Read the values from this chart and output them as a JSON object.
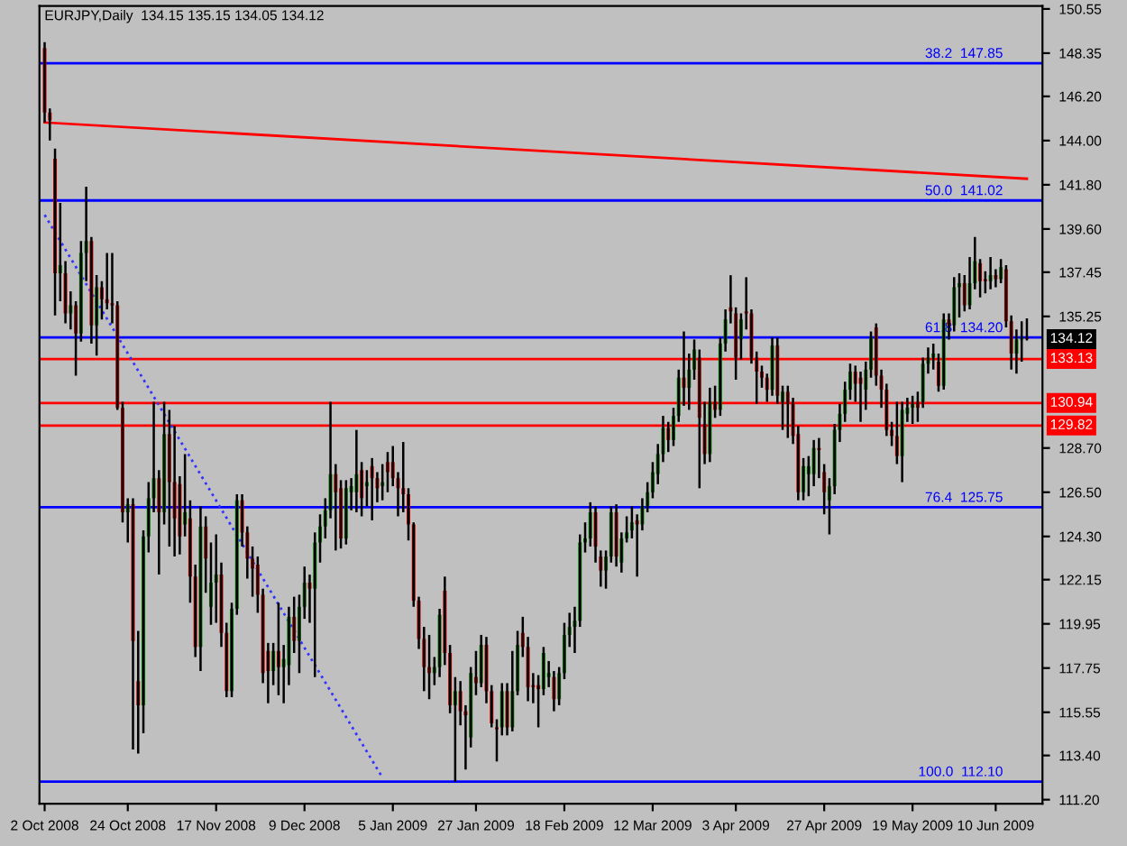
{
  "chart_data": {
    "type": "candlestick",
    "title": "EURJPY,Daily  134.15 135.15 134.05 134.12",
    "categories": [
      "2 Oct 2008",
      null,
      null,
      null,
      null,
      null,
      null,
      null,
      null,
      null,
      null,
      null,
      null,
      null,
      null,
      null,
      "24 Oct 2008",
      null,
      null,
      null,
      null,
      null,
      null,
      null,
      null,
      null,
      null,
      null,
      null,
      null,
      null,
      null,
      null,
      "17 Nov 2008",
      null,
      null,
      null,
      null,
      null,
      null,
      null,
      null,
      null,
      null,
      null,
      null,
      null,
      null,
      null,
      null,
      "9 Dec 2008",
      null,
      null,
      null,
      null,
      null,
      null,
      null,
      null,
      null,
      null,
      null,
      null,
      null,
      null,
      null,
      null,
      "5 Jan 2009",
      null,
      null,
      null,
      null,
      null,
      null,
      null,
      null,
      null,
      null,
      null,
      null,
      null,
      null,
      null,
      "27 Jan 2009",
      null,
      null,
      null,
      null,
      null,
      null,
      null,
      null,
      null,
      null,
      null,
      null,
      null,
      null,
      null,
      null,
      "18 Feb 2009",
      null,
      null,
      null,
      null,
      null,
      null,
      null,
      null,
      null,
      null,
      null,
      null,
      null,
      null,
      null,
      null,
      "12 Mar 2009",
      null,
      null,
      null,
      null,
      null,
      null,
      null,
      null,
      null,
      null,
      null,
      null,
      null,
      null,
      null,
      "3 Apr 2009",
      null,
      null,
      null,
      null,
      null,
      null,
      null,
      null,
      null,
      null,
      null,
      null,
      null,
      null,
      null,
      null,
      "27 Apr 2009",
      null,
      null,
      null,
      null,
      null,
      null,
      null,
      null,
      null,
      null,
      null,
      null,
      null,
      null,
      null,
      null,
      "19 May 2009",
      null,
      null,
      null,
      null,
      null,
      null,
      null,
      null,
      null,
      null,
      null,
      null,
      null,
      null,
      null,
      "10 Jun 2009",
      null,
      null,
      null,
      null,
      null,
      null
    ],
    "ohlc": [
      [
        148.6,
        148.9,
        144.9,
        145.4
      ],
      [
        145.4,
        145.6,
        144.0,
        145.0
      ],
      [
        143.1,
        143.6,
        135.3,
        137.4
      ],
      [
        137.4,
        140.9,
        136.0,
        137.8
      ],
      [
        137.4,
        138.0,
        134.9,
        135.4
      ],
      [
        135.4,
        136.5,
        134.6,
        135.8
      ],
      [
        135.8,
        136.0,
        132.3,
        134.4
      ],
      [
        134.4,
        139.0,
        134.0,
        138.4
      ],
      [
        138.4,
        141.7,
        137.0,
        139.0
      ],
      [
        139.0,
        139.2,
        133.9,
        134.8
      ],
      [
        134.8,
        137.3,
        133.3,
        136.7
      ],
      [
        136.7,
        137.0,
        135.1,
        136.1
      ],
      [
        136.1,
        138.4,
        135.6,
        135.9
      ],
      [
        135.9,
        138.4,
        134.9,
        135.8
      ],
      [
        135.8,
        136.0,
        130.6,
        130.7
      ],
      [
        130.7,
        131.0,
        125.0,
        125.5
      ],
      [
        125.5,
        126.2,
        124.0,
        125.9
      ],
      [
        125.9,
        126.2,
        113.7,
        119.1
      ],
      [
        117.1,
        119.6,
        113.5,
        115.9
      ],
      [
        115.9,
        124.6,
        114.5,
        124.3
      ],
      [
        124.3,
        127.0,
        123.5,
        126.2
      ],
      [
        126.2,
        131.0,
        125.5,
        127.2
      ],
      [
        127.2,
        127.6,
        122.4,
        125.5
      ],
      [
        125.5,
        131.0,
        124.9,
        129.4
      ],
      [
        129.4,
        130.6,
        123.8,
        127.0
      ],
      [
        127.0,
        129.8,
        123.3,
        125.2
      ],
      [
        126.9,
        127.3,
        123.4,
        124.3
      ],
      [
        124.9,
        128.4,
        124.3,
        125.5
      ],
      [
        125.2,
        126.1,
        121.0,
        122.3
      ],
      [
        122.3,
        122.9,
        118.3,
        118.8
      ],
      [
        118.8,
        125.8,
        117.6,
        124.8
      ],
      [
        124.8,
        125.3,
        121.5,
        123.2
      ],
      [
        120.8,
        124.0,
        119.9,
        122.0
      ],
      [
        122.0,
        124.4,
        120.0,
        122.4
      ],
      [
        122.4,
        123.0,
        118.8,
        119.5
      ],
      [
        119.5,
        120.0,
        116.3,
        116.6
      ],
      [
        116.6,
        121.0,
        116.3,
        120.7
      ],
      [
        120.7,
        126.4,
        120.4,
        126.1
      ],
      [
        126.1,
        126.4,
        123.8,
        124.5
      ],
      [
        124.5,
        124.8,
        122.2,
        123.2
      ],
      [
        123.2,
        123.8,
        121.3,
        122.7
      ],
      [
        122.9,
        123.3,
        120.5,
        121.4
      ],
      [
        121.4,
        121.7,
        117.0,
        117.5
      ],
      [
        118.6,
        119.0,
        116.0,
        117.6
      ],
      [
        117.6,
        119.0,
        116.9,
        118.6
      ],
      [
        118.6,
        121.0,
        116.4,
        117.8
      ],
      [
        117.8,
        118.9,
        116.0,
        118.2
      ],
      [
        117.9,
        120.8,
        116.9,
        120.3
      ],
      [
        120.3,
        121.3,
        118.5,
        119.1
      ],
      [
        119.1,
        121.4,
        117.5,
        120.8
      ],
      [
        120.8,
        122.8,
        120.2,
        122.0
      ],
      [
        122.0,
        122.4,
        120.0,
        121.7
      ],
      [
        121.7,
        124.5,
        117.3,
        124.0
      ],
      [
        124.0,
        125.4,
        123.0,
        124.8
      ],
      [
        124.8,
        126.2,
        124.2,
        125.6
      ],
      [
        125.6,
        131.0,
        125.2,
        127.4
      ],
      [
        127.4,
        127.9,
        123.6,
        126.5
      ],
      [
        126.7,
        127.1,
        123.7,
        124.2
      ],
      [
        124.2,
        127.1,
        123.9,
        126.7
      ],
      [
        126.5,
        127.2,
        125.6,
        126.8
      ],
      [
        126.5,
        129.6,
        125.5,
        127.4
      ],
      [
        127.6,
        128.0,
        125.3,
        126.2
      ],
      [
        126.8,
        127.6,
        125.8,
        127.0
      ],
      [
        127.8,
        128.2,
        125.1,
        127.2
      ],
      [
        127.2,
        127.5,
        126.0,
        126.7
      ],
      [
        126.8,
        127.9,
        126.1,
        127.0
      ],
      [
        128.0,
        128.5,
        126.5,
        127.5
      ],
      [
        128.0,
        128.8,
        126.8,
        127.2
      ],
      [
        127.2,
        127.5,
        125.3,
        126.7
      ],
      [
        126.7,
        129.0,
        125.5,
        126.4
      ],
      [
        126.4,
        126.7,
        124.1,
        124.9
      ],
      [
        124.9,
        125.0,
        120.8,
        121.1
      ],
      [
        121.1,
        121.3,
        118.7,
        119.2
      ],
      [
        119.2,
        119.8,
        116.6,
        117.8
      ],
      [
        117.8,
        119.4,
        116.2,
        117.5
      ],
      [
        117.5,
        118.3,
        116.9,
        117.8
      ],
      [
        117.8,
        120.7,
        117.3,
        120.4
      ],
      [
        121.6,
        122.3,
        117.9,
        118.5
      ],
      [
        118.5,
        118.9,
        115.5,
        115.9
      ],
      [
        115.9,
        117.3,
        112.1,
        116.6
      ],
      [
        116.6,
        117.1,
        114.9,
        115.6
      ],
      [
        115.6,
        115.9,
        112.7,
        115.4
      ],
      [
        114.3,
        117.8,
        113.8,
        117.5
      ],
      [
        117.3,
        118.6,
        116.4,
        117.0
      ],
      [
        117.0,
        119.4,
        116.8,
        118.9
      ],
      [
        118.9,
        119.3,
        116.0,
        116.6
      ],
      [
        116.6,
        116.9,
        114.8,
        115.0
      ],
      [
        114.8,
        115.2,
        113.1,
        114.7
      ],
      [
        114.8,
        117.0,
        114.4,
        116.6
      ],
      [
        116.6,
        117.0,
        114.4,
        114.8
      ],
      [
        114.8,
        118.6,
        114.6,
        116.6
      ],
      [
        116.6,
        119.6,
        116.4,
        118.9
      ],
      [
        119.5,
        120.3,
        118.3,
        118.8
      ],
      [
        118.8,
        119.3,
        116.1,
        116.8
      ],
      [
        116.9,
        117.5,
        116.0,
        116.8
      ],
      [
        116.9,
        117.4,
        114.8,
        116.7
      ],
      [
        116.7,
        118.8,
        116.4,
        118.5
      ],
      [
        117.3,
        118.1,
        116.8,
        117.5
      ],
      [
        117.3,
        117.6,
        115.6,
        116.2
      ],
      [
        116.2,
        117.8,
        115.9,
        117.5
      ],
      [
        117.5,
        120.0,
        117.2,
        119.4
      ],
      [
        119.4,
        120.5,
        118.8,
        119.8
      ],
      [
        119.8,
        120.8,
        118.5,
        120.1
      ],
      [
        120.1,
        124.4,
        119.8,
        124.0
      ],
      [
        124.0,
        125.0,
        123.5,
        124.2
      ],
      [
        124.2,
        126.0,
        123.8,
        125.5
      ],
      [
        125.5,
        125.8,
        123.0,
        123.8
      ],
      [
        123.3,
        123.6,
        121.8,
        122.6
      ],
      [
        122.6,
        123.6,
        121.7,
        123.3
      ],
      [
        123.3,
        125.8,
        123.0,
        125.5
      ],
      [
        125.5,
        125.9,
        122.8,
        123.3
      ],
      [
        123.0,
        124.5,
        122.5,
        124.2
      ],
      [
        124.2,
        125.3,
        124.0,
        124.5
      ],
      [
        124.6,
        125.8,
        124.2,
        125.0
      ],
      [
        125.1,
        125.4,
        122.3,
        124.9
      ],
      [
        124.9,
        126.2,
        124.6,
        125.8
      ],
      [
        125.8,
        127.0,
        125.5,
        126.5
      ],
      [
        126.5,
        128.0,
        126.2,
        127.5
      ],
      [
        127.4,
        128.9,
        126.9,
        128.4
      ],
      [
        128.4,
        130.3,
        128.0,
        129.7
      ],
      [
        129.7,
        130.0,
        128.5,
        129.1
      ],
      [
        129.1,
        130.7,
        128.8,
        130.3
      ],
      [
        130.3,
        132.6,
        130.0,
        132.2
      ],
      [
        132.2,
        134.5,
        130.8,
        131.7
      ],
      [
        131.7,
        133.4,
        130.6,
        132.6
      ],
      [
        132.6,
        134.1,
        132.1,
        133.6
      ],
      [
        133.2,
        133.6,
        126.7,
        130.2
      ],
      [
        129.9,
        131.0,
        127.9,
        128.4
      ],
      [
        128.4,
        131.7,
        128.0,
        131.0
      ],
      [
        131.0,
        131.8,
        130.2,
        130.6
      ],
      [
        130.6,
        134.2,
        130.3,
        133.9
      ],
      [
        133.9,
        135.6,
        133.5,
        135.1
      ],
      [
        135.7,
        137.3,
        134.9,
        135.5
      ],
      [
        135.4,
        135.7,
        132.1,
        133.2
      ],
      [
        134.1,
        135.4,
        133.1,
        135.1
      ],
      [
        135.5,
        137.2,
        134.6,
        135.4
      ],
      [
        135.4,
        135.6,
        132.9,
        133.2
      ],
      [
        133.2,
        133.5,
        130.9,
        132.5
      ],
      [
        132.5,
        132.8,
        131.7,
        132.2
      ],
      [
        132.2,
        132.4,
        131.0,
        131.6
      ],
      [
        131.6,
        134.2,
        131.3,
        133.8
      ],
      [
        133.8,
        134.2,
        130.9,
        131.3
      ],
      [
        131.0,
        131.8,
        129.6,
        131.5
      ],
      [
        131.5,
        131.8,
        129.2,
        130.9
      ],
      [
        130.9,
        131.2,
        128.9,
        129.3
      ],
      [
        129.4,
        129.8,
        126.1,
        126.5
      ],
      [
        126.5,
        128.2,
        126.1,
        127.8
      ],
      [
        127.4,
        128.3,
        126.3,
        127.8
      ],
      [
        127.4,
        129.1,
        126.8,
        128.7
      ],
      [
        128.7,
        129.2,
        127.2,
        128.6
      ],
      [
        127.5,
        127.9,
        125.4,
        126.5
      ],
      [
        126.1,
        127.2,
        124.4,
        126.8
      ],
      [
        126.8,
        129.9,
        126.4,
        129.6
      ],
      [
        129.6,
        130.9,
        129.0,
        130.4
      ],
      [
        130.4,
        132.0,
        130.0,
        131.6
      ],
      [
        131.6,
        132.9,
        131.1,
        132.5
      ],
      [
        132.5,
        132.8,
        131.0,
        131.9
      ],
      [
        132.2,
        132.5,
        130.0,
        131.9
      ],
      [
        131.6,
        133.0,
        130.6,
        132.6
      ],
      [
        132.6,
        134.5,
        132.2,
        134.2
      ],
      [
        134.7,
        134.9,
        131.8,
        132.3
      ],
      [
        132.3,
        132.6,
        130.7,
        131.6
      ],
      [
        131.6,
        131.9,
        129.3,
        129.6
      ],
      [
        129.6,
        130.0,
        128.8,
        129.3
      ],
      [
        129.3,
        131.0,
        127.9,
        128.3
      ],
      [
        128.3,
        131.0,
        127.0,
        130.6
      ],
      [
        130.4,
        131.2,
        130.0,
        130.7
      ],
      [
        130.7,
        131.3,
        129.9,
        130.9
      ],
      [
        131.0,
        131.5,
        130.0,
        130.7
      ],
      [
        131.0,
        133.2,
        130.7,
        132.9
      ],
      [
        132.9,
        133.7,
        132.4,
        133.2
      ],
      [
        133.2,
        133.9,
        132.6,
        133.4
      ],
      [
        133.0,
        133.4,
        131.5,
        131.8
      ],
      [
        131.8,
        135.4,
        131.6,
        135.1
      ],
      [
        135.1,
        135.4,
        134.1,
        134.8
      ],
      [
        134.8,
        137.2,
        134.5,
        136.7
      ],
      [
        136.7,
        137.4,
        135.2,
        136.9
      ],
      [
        136.9,
        137.3,
        135.5,
        135.8
      ],
      [
        135.8,
        138.2,
        135.6,
        136.9
      ],
      [
        136.9,
        139.2,
        136.6,
        138.0
      ],
      [
        137.9,
        138.1,
        136.2,
        137.0
      ],
      [
        137.1,
        137.5,
        136.4,
        137.0
      ],
      [
        137.0,
        138.2,
        136.6,
        137.3
      ],
      [
        137.3,
        137.6,
        136.7,
        137.1
      ],
      [
        137.1,
        138.1,
        136.9,
        137.7
      ],
      [
        137.6,
        137.8,
        134.7,
        135.0
      ],
      [
        135.0,
        135.3,
        132.6,
        133.4
      ],
      [
        133.4,
        134.6,
        132.4,
        134.1
      ],
      [
        134.1,
        135.0,
        133.0,
        134.2
      ],
      [
        134.15,
        135.15,
        134.05,
        134.12
      ]
    ],
    "series": [
      {
        "type": "line",
        "color": "#ff0000",
        "line_style": "solid",
        "values": [
          144.9,
          null,
          null,
          null,
          null,
          null,
          null,
          null,
          null,
          null,
          null,
          null,
          null,
          null,
          null,
          null,
          null,
          null,
          null,
          null,
          null,
          null,
          null,
          null,
          null,
          null,
          null,
          null,
          null,
          null,
          null,
          null,
          null,
          null,
          null,
          null,
          null,
          null,
          null,
          null,
          null,
          null,
          null,
          null,
          null,
          null,
          null,
          null,
          null,
          null,
          null,
          null,
          null,
          null,
          null,
          null,
          null,
          null,
          null,
          null,
          null,
          null,
          null,
          null,
          null,
          null,
          null,
          null,
          null,
          null,
          null,
          null,
          null,
          null,
          null,
          null,
          null,
          null,
          null,
          null,
          null,
          null,
          null,
          null,
          null,
          null,
          null,
          null,
          null,
          null,
          null,
          null,
          null,
          null,
          null,
          null,
          null,
          null,
          null,
          null,
          null,
          null,
          null,
          null,
          null,
          null,
          null,
          null,
          null,
          null,
          null,
          null,
          null,
          null,
          null,
          null,
          null,
          null,
          null,
          null,
          null,
          null,
          null,
          null,
          null,
          null,
          null,
          null,
          null,
          null,
          null,
          null,
          null,
          null,
          null,
          null,
          null,
          null,
          null,
          null,
          null,
          null,
          null,
          null,
          null,
          null,
          null,
          null,
          null,
          null,
          null,
          null,
          null,
          null,
          null,
          null,
          null,
          null,
          null,
          null,
          null,
          null,
          null,
          null,
          null,
          null,
          null,
          null,
          null,
          null,
          null,
          null,
          null,
          null,
          null,
          null,
          null,
          null,
          null,
          null,
          null,
          null,
          null,
          null,
          null,
          null,
          null,
          null,
          null,
          142.1
        ]
      },
      {
        "type": "line",
        "color": "#3333ff",
        "line_style": "dotted",
        "values": [
          140.3,
          null,
          null,
          null,
          null,
          null,
          null,
          null,
          null,
          null,
          null,
          null,
          null,
          null,
          null,
          null,
          null,
          null,
          null,
          null,
          null,
          null,
          null,
          null,
          null,
          null,
          null,
          null,
          null,
          null,
          null,
          null,
          null,
          null,
          null,
          null,
          null,
          null,
          null,
          null,
          null,
          null,
          null,
          null,
          null,
          null,
          null,
          null,
          null,
          null,
          null,
          null,
          null,
          null,
          null,
          null,
          null,
          null,
          null,
          null,
          null,
          null,
          null,
          null,
          null,
          112.3,
          null,
          null,
          null,
          null,
          null,
          null,
          null,
          null,
          null,
          null,
          null,
          null,
          null,
          null,
          null,
          null,
          null,
          null,
          null,
          null,
          null,
          null,
          null,
          null,
          null,
          null,
          null,
          null,
          null,
          null,
          null,
          null,
          null,
          null,
          null,
          null,
          null,
          null,
          null,
          null,
          null,
          null,
          null,
          null,
          null,
          null,
          null,
          null,
          null,
          null,
          null,
          null,
          null,
          null,
          null,
          null,
          null,
          null,
          null,
          null,
          null,
          null,
          null,
          null,
          null,
          null,
          null,
          null,
          null,
          null,
          null,
          null,
          null,
          null,
          null,
          null,
          null,
          null,
          null,
          null,
          null,
          null,
          null,
          null,
          null,
          null,
          null,
          null,
          null,
          null,
          null,
          null,
          null,
          null,
          null,
          null,
          null,
          null,
          null,
          null,
          null,
          null,
          null,
          null,
          null,
          null,
          null,
          null,
          null,
          null,
          null,
          null,
          null,
          null,
          null,
          null,
          null,
          null,
          null,
          null,
          null,
          null,
          null,
          null
        ]
      }
    ],
    "ref_lines": [
      {
        "axis": "y",
        "value": 147.85,
        "label": "38.2  147.85",
        "color": "#0000ff"
      },
      {
        "axis": "y",
        "value": 141.02,
        "label": "50.0  141.02",
        "color": "#0000ff"
      },
      {
        "axis": "y",
        "value": 134.2,
        "label": "61.8  134.20",
        "color": "#0000ff"
      },
      {
        "axis": "y",
        "value": 125.75,
        "label": "76.4  125.75",
        "color": "#0000ff"
      },
      {
        "axis": "y",
        "value": 112.1,
        "label": "100.0  112.10",
        "color": "#0000ff"
      },
      {
        "axis": "y",
        "value": 133.13,
        "label": "133.13",
        "color": "#ff0000"
      },
      {
        "axis": "y",
        "value": 130.94,
        "label": "130.94",
        "color": "#ff0000"
      },
      {
        "axis": "y",
        "value": 129.82,
        "label": "129.82",
        "color": "#ff0000"
      }
    ],
    "annotations": [
      {
        "text": "134.12",
        "y": 134.12
      }
    ],
    "ylim": [
      111.0,
      150.7
    ],
    "yticks": [
      {
        "value": 150.55,
        "label": "150.55"
      },
      {
        "value": 148.35,
        "label": "148.35"
      },
      {
        "value": 146.2,
        "label": "146.20"
      },
      {
        "value": 144.0,
        "label": "144.00"
      },
      {
        "value": 141.8,
        "label": "141.80"
      },
      {
        "value": 139.6,
        "label": "139.60"
      },
      {
        "value": 137.45,
        "label": "137.45"
      },
      {
        "value": 135.25,
        "label": "135.25"
      },
      {
        "value": 128.7,
        "label": "128.70"
      },
      {
        "value": 126.5,
        "label": "126.50"
      },
      {
        "value": 124.3,
        "label": "124.30"
      },
      {
        "value": 122.15,
        "label": "122.15"
      },
      {
        "value": 119.95,
        "label": "119.95"
      },
      {
        "value": 117.75,
        "label": "117.75"
      },
      {
        "value": 115.55,
        "label": "115.55"
      },
      {
        "value": 113.4,
        "label": "113.40"
      },
      {
        "value": 111.2,
        "label": "111.20"
      }
    ],
    "grid": false,
    "legend": false
  }
}
